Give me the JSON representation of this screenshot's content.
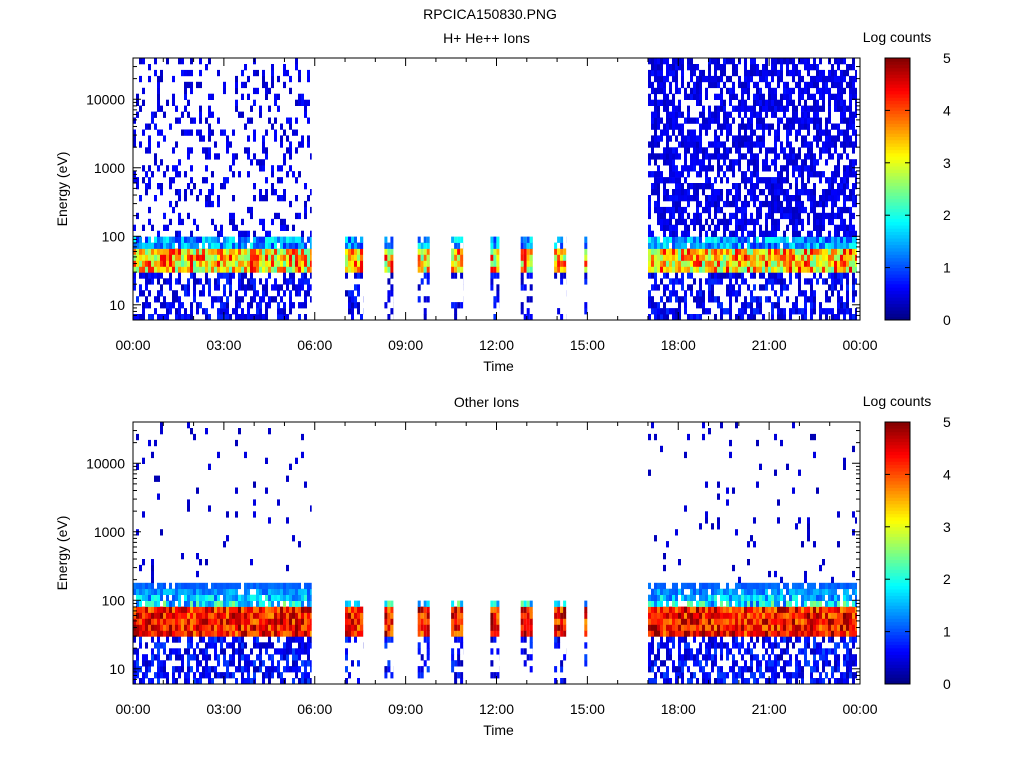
{
  "figure_title": "RPCICA150830.PNG",
  "chart_data": [
    {
      "type": "heatmap",
      "title": "H+ He++ Ions",
      "xlabel": "Time",
      "ylabel": "Energy (eV)",
      "x_ticks": [
        "00:00",
        "03:00",
        "06:00",
        "09:00",
        "12:00",
        "15:00",
        "18:00",
        "21:00",
        "00:00"
      ],
      "x_tick_hours": [
        0,
        3,
        6,
        9,
        12,
        15,
        18,
        21,
        24
      ],
      "xlim_hours": [
        0,
        24
      ],
      "y_scale": "log",
      "ylim": [
        6,
        40000
      ],
      "y_ticks": [
        "10",
        "100",
        "1000",
        "10000"
      ],
      "y_tick_values": [
        10,
        100,
        1000,
        10000
      ],
      "colorbar": {
        "label": "Log counts",
        "range": [
          0,
          5
        ],
        "ticks": [
          "0",
          "1",
          "2",
          "3",
          "4",
          "5"
        ],
        "colormap": "jet"
      },
      "peak_energy_ev": 45,
      "data_segments": [
        {
          "start_hour": 0.0,
          "end_hour": 5.9,
          "mode": "full"
        },
        {
          "start_hour": 7.0,
          "end_hour": 7.6,
          "mode": "low"
        },
        {
          "start_hour": 8.3,
          "end_hour": 8.6,
          "mode": "low"
        },
        {
          "start_hour": 9.4,
          "end_hour": 9.8,
          "mode": "low"
        },
        {
          "start_hour": 10.5,
          "end_hour": 10.9,
          "mode": "low"
        },
        {
          "start_hour": 11.8,
          "end_hour": 12.1,
          "mode": "low"
        },
        {
          "start_hour": 12.8,
          "end_hour": 13.2,
          "mode": "low"
        },
        {
          "start_hour": 13.9,
          "end_hour": 14.3,
          "mode": "low"
        },
        {
          "start_hour": 14.9,
          "end_hour": 15.0,
          "mode": "low"
        },
        {
          "start_hour": 17.0,
          "end_hour": 23.9,
          "mode": "full"
        }
      ]
    },
    {
      "type": "heatmap",
      "title": "Other Ions",
      "xlabel": "Time",
      "ylabel": "Energy (eV)",
      "x_ticks": [
        "00:00",
        "03:00",
        "06:00",
        "09:00",
        "12:00",
        "15:00",
        "18:00",
        "21:00",
        "00:00"
      ],
      "x_tick_hours": [
        0,
        3,
        6,
        9,
        12,
        15,
        18,
        21,
        24
      ],
      "xlim_hours": [
        0,
        24
      ],
      "y_scale": "log",
      "ylim": [
        6,
        40000
      ],
      "y_ticks": [
        "10",
        "100",
        "1000",
        "10000"
      ],
      "y_tick_values": [
        10,
        100,
        1000,
        10000
      ],
      "colorbar": {
        "label": "Log counts",
        "range": [
          0,
          5
        ],
        "ticks": [
          "0",
          "1",
          "2",
          "3",
          "4",
          "5"
        ],
        "colormap": "jet"
      },
      "peak_energy_ev": 45,
      "data_segments": [
        {
          "start_hour": 0.0,
          "end_hour": 5.9,
          "mode": "full"
        },
        {
          "start_hour": 7.0,
          "end_hour": 7.6,
          "mode": "low"
        },
        {
          "start_hour": 8.3,
          "end_hour": 8.6,
          "mode": "low"
        },
        {
          "start_hour": 9.4,
          "end_hour": 9.8,
          "mode": "low"
        },
        {
          "start_hour": 10.5,
          "end_hour": 10.9,
          "mode": "low"
        },
        {
          "start_hour": 11.8,
          "end_hour": 12.1,
          "mode": "low"
        },
        {
          "start_hour": 12.8,
          "end_hour": 13.2,
          "mode": "low"
        },
        {
          "start_hour": 13.9,
          "end_hour": 14.3,
          "mode": "low"
        },
        {
          "start_hour": 14.9,
          "end_hour": 15.0,
          "mode": "low"
        },
        {
          "start_hour": 17.0,
          "end_hour": 23.9,
          "mode": "full"
        }
      ]
    }
  ]
}
